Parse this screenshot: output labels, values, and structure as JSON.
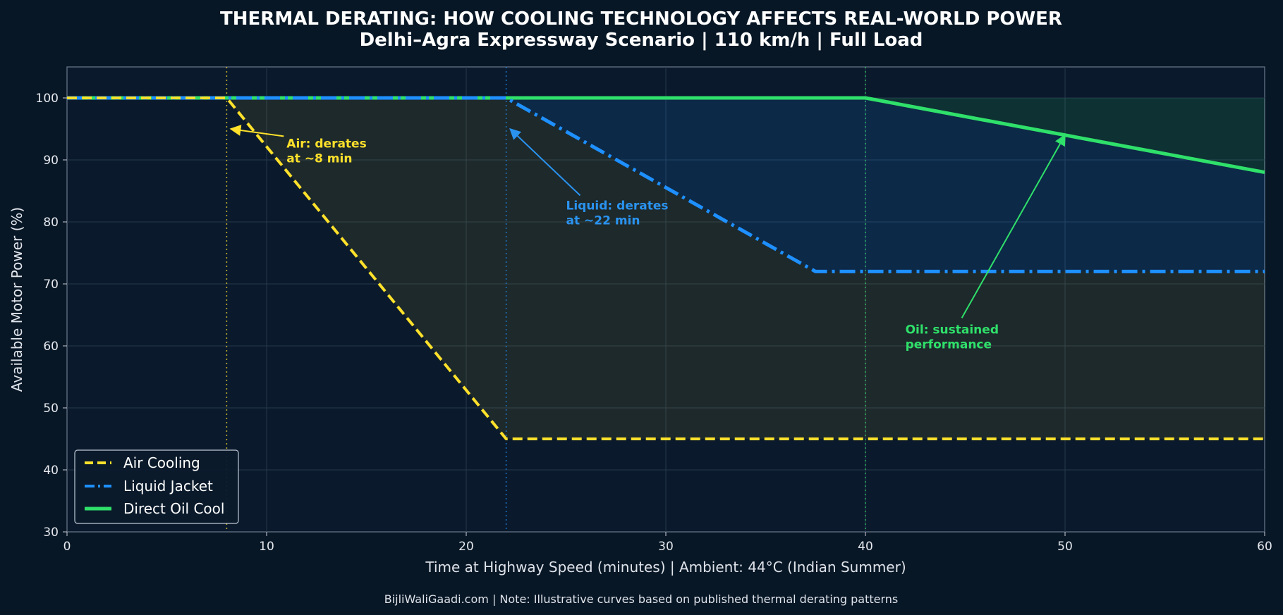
{
  "chart_data": {
    "type": "line",
    "title": "THERMAL DERATING: HOW COOLING TECHNOLOGY AFFECTS REAL-WORLD POWER",
    "subtitle": "Delhi–Agra Expressway Scenario | 110 km/h | Full Load",
    "xlabel": "Time at Highway Speed (minutes) | Ambient: 44°C (Indian Summer)",
    "ylabel": "Available Motor Power (%)",
    "xlim": [
      0,
      60
    ],
    "ylim": [
      30,
      105
    ],
    "xticks": [
      0,
      10,
      20,
      30,
      40,
      50,
      60
    ],
    "yticks": [
      30,
      40,
      50,
      60,
      70,
      80,
      90,
      100
    ],
    "grid": true,
    "legend_position": "bottom-left",
    "series": [
      {
        "name": "Air Cooling",
        "color": "#ffe12b",
        "style": "dashed",
        "derate_start": 8,
        "x": [
          0,
          8,
          22,
          60
        ],
        "y": [
          100,
          100,
          45,
          45
        ]
      },
      {
        "name": "Liquid Jacket",
        "color": "#1e90ff",
        "style": "dashdot",
        "derate_start": 22,
        "x": [
          0,
          22,
          37.5,
          60
        ],
        "y": [
          100,
          100,
          72,
          72
        ]
      },
      {
        "name": "Direct Oil Cool",
        "color": "#2fe06a",
        "style": "solid",
        "derate_start": 40,
        "x": [
          0,
          40,
          60
        ],
        "y": [
          100,
          100,
          88
        ]
      }
    ],
    "annotations": [
      {
        "lines": [
          "Air: derates",
          "at ~8 min"
        ],
        "color": "#ffe12b",
        "text_at": [
          11,
          92
        ],
        "arrow_to": [
          8.2,
          95
        ]
      },
      {
        "lines": [
          "Liquid: derates",
          "at ~22 min"
        ],
        "color": "#2a93f0",
        "text_at": [
          25,
          82
        ],
        "arrow_to": [
          22.2,
          95
        ]
      },
      {
        "lines": [
          "Oil: sustained",
          "performance"
        ],
        "color": "#2fe06a",
        "text_at": [
          42,
          62
        ],
        "arrow_to": [
          50,
          94
        ]
      }
    ],
    "footer": "BijliWaliGaadi.com | Note: Illustrative curves based on published thermal derating patterns"
  }
}
